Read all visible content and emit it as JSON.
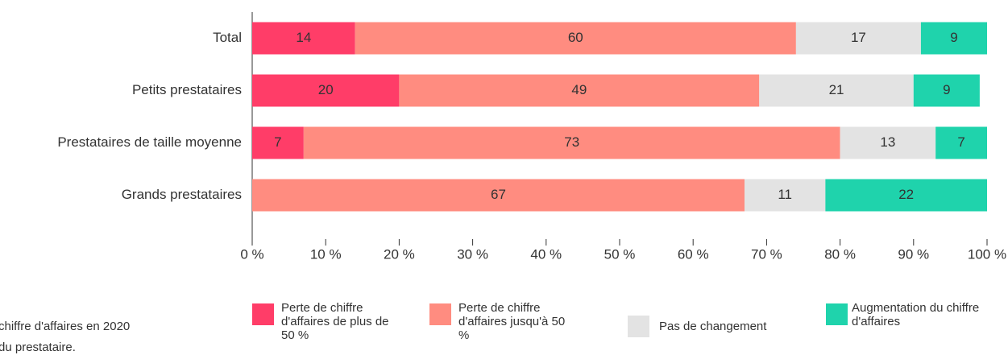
{
  "chart_data": {
    "type": "stacked_bar_horizontal",
    "categories": [
      "Total",
      "Petits prestataires",
      "Prestataires de taille moyenne",
      "Grands prestataires"
    ],
    "series": [
      {
        "name": "Perte de chiffre d'affaires de plus de 50 %",
        "color": "#ff3d68",
        "values": [
          14,
          20,
          7,
          0
        ]
      },
      {
        "name": "Perte de chiffre d'affaires jusqu'à 50 %",
        "color": "#ff8c80",
        "values": [
          60,
          49,
          73,
          67
        ]
      },
      {
        "name": "Pas de changement",
        "color": "#e3e3e3",
        "values": [
          17,
          21,
          13,
          11
        ]
      },
      {
        "name": "Augmentation du chiffre d'affaires",
        "color": "#1fd3ac",
        "values": [
          9,
          9,
          7,
          22
        ]
      }
    ],
    "xlim": [
      0,
      100
    ],
    "xticks": [
      {
        "value": 0,
        "label": "0 %"
      },
      {
        "value": 10,
        "label": "10 %"
      },
      {
        "value": 20,
        "label": "20 %"
      },
      {
        "value": 30,
        "label": "30 %"
      },
      {
        "value": 40,
        "label": "40 %"
      },
      {
        "value": 50,
        "label": "50 %"
      },
      {
        "value": 60,
        "label": "60 %"
      },
      {
        "value": 70,
        "label": "70 %"
      },
      {
        "value": 80,
        "label": "80 %"
      },
      {
        "value": 90,
        "label": "90 %"
      },
      {
        "value": 100,
        "label": "100 %"
      }
    ],
    "notes": [
      "chiffre d'affaires en 2020",
      "du prestataire."
    ]
  }
}
